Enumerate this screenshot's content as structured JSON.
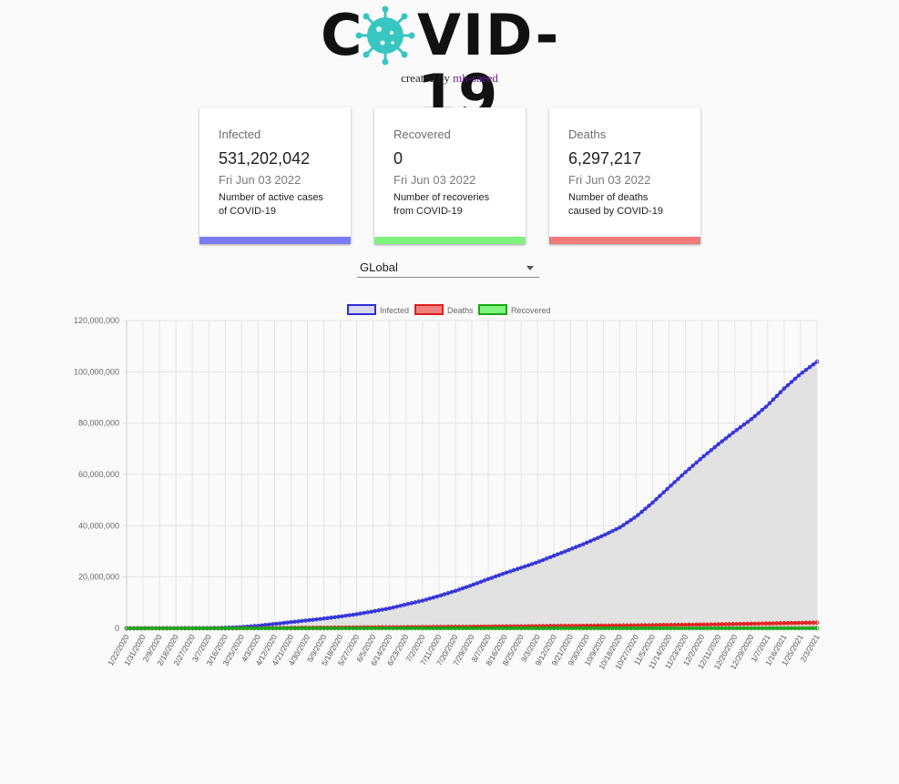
{
  "header": {
    "logo_left": "C",
    "logo_right": "VID-19",
    "credit_prefix": "created by",
    "credit_link": "mh-saeed"
  },
  "cards": [
    {
      "title": "Infected",
      "value": "531,202,042",
      "date": "Fri Jun 03 2022",
      "desc": "Number of active cases of COVID-19",
      "color": "#7b7cf5"
    },
    {
      "title": "Recovered",
      "value": "0",
      "date": "Fri Jun 03 2022",
      "desc": "Number of recoveries from COVID-19",
      "color": "#7ef27c"
    },
    {
      "title": "Deaths",
      "value": "6,297,217",
      "date": "Fri Jun 03 2022",
      "desc": "Number of deaths caused by COVID-19",
      "color": "#f07b7b"
    }
  ],
  "country_select": {
    "value": "GLobal"
  },
  "chart_data": {
    "type": "line",
    "legend_position": "top",
    "grid": true,
    "ylim": [
      0,
      120000000
    ],
    "yticks": [
      0,
      20000000,
      40000000,
      60000000,
      80000000,
      100000000,
      120000000
    ],
    "ytick_labels": [
      "0",
      "20,000,000",
      "40,000,000",
      "60,000,000",
      "80,000,000",
      "100,000,000",
      "120,000,000"
    ],
    "x_start": "1/22/2020",
    "x_end": "2/3/2021",
    "xtick_labels": [
      "1/22/2020",
      "1/31/2020",
      "2/9/2020",
      "2/18/2020",
      "2/27/2020",
      "3/7/2020",
      "3/16/2020",
      "3/25/2020",
      "4/3/2020",
      "4/12/2020",
      "4/21/2020",
      "4/30/2020",
      "5/9/2020",
      "5/18/2020",
      "5/27/2020",
      "6/5/2020",
      "6/14/2020",
      "6/23/2020",
      "7/2/2020",
      "7/11/2020",
      "7/20/2020",
      "7/29/2020",
      "8/7/2020",
      "8/16/2020",
      "8/25/2020",
      "9/3/2020",
      "9/12/2020",
      "9/21/2020",
      "9/30/2020",
      "10/9/2020",
      "10/18/2020",
      "10/27/2020",
      "11/5/2020",
      "11/14/2020",
      "11/23/2020",
      "12/2/2020",
      "12/11/2020",
      "12/20/2020",
      "12/29/2020",
      "1/7/2021",
      "1/16/2021",
      "1/25/2021",
      "2/3/2021"
    ],
    "series": [
      {
        "name": "Infected",
        "color": "#2f2fd8",
        "fill": "#e2e2e2",
        "x": [
          "1/22/2020",
          "2/18/2020",
          "3/7/2020",
          "3/16/2020",
          "3/25/2020",
          "4/3/2020",
          "4/12/2020",
          "4/21/2020",
          "4/30/2020",
          "5/9/2020",
          "5/18/2020",
          "5/27/2020",
          "6/5/2020",
          "6/14/2020",
          "6/23/2020",
          "7/2/2020",
          "7/11/2020",
          "7/20/2020",
          "7/29/2020",
          "8/7/2020",
          "8/16/2020",
          "8/25/2020",
          "9/3/2020",
          "9/12/2020",
          "9/21/2020",
          "9/30/2020",
          "10/9/2020",
          "10/18/2020",
          "10/27/2020",
          "11/5/2020",
          "11/14/2020",
          "11/23/2020",
          "12/2/2020",
          "12/11/2020",
          "12/20/2020",
          "12/29/2020",
          "1/7/2021",
          "1/16/2021",
          "1/25/2021",
          "2/3/2021"
        ],
        "values": [
          0,
          50000,
          100000,
          200000,
          500000,
          1000000,
          1700000,
          2400000,
          3100000,
          3800000,
          4600000,
          5500000,
          6600000,
          7800000,
          9300000,
          10800000,
          12600000,
          14600000,
          16800000,
          19200000,
          21500000,
          23600000,
          25800000,
          28300000,
          30800000,
          33400000,
          36200000,
          39300000,
          43600000,
          49000000,
          55000000,
          60900000,
          66500000,
          71800000,
          76800000,
          81500000,
          87000000,
          93500000,
          99200000,
          104000000
        ]
      },
      {
        "name": "Deaths",
        "color": "#e01e1e",
        "fill": "rgba(240,80,80,0.25)",
        "x": [
          "1/22/2020",
          "3/7/2020",
          "3/25/2020",
          "4/12/2020",
          "5/9/2020",
          "6/5/2020",
          "7/2/2020",
          "7/29/2020",
          "8/25/2020",
          "9/21/2020",
          "10/18/2020",
          "11/14/2020",
          "12/11/2020",
          "1/7/2021",
          "2/3/2021"
        ],
        "values": [
          0,
          3000,
          20000,
          110000,
          280000,
          400000,
          520000,
          660000,
          820000,
          970000,
          1110000,
          1300000,
          1560000,
          1920000,
          2250000
        ]
      },
      {
        "name": "Recovered",
        "color": "#18a818",
        "fill": "rgba(100,230,100,0.35)",
        "x": [
          "1/22/2020",
          "2/3/2021"
        ],
        "values": [
          0,
          0
        ]
      }
    ]
  }
}
